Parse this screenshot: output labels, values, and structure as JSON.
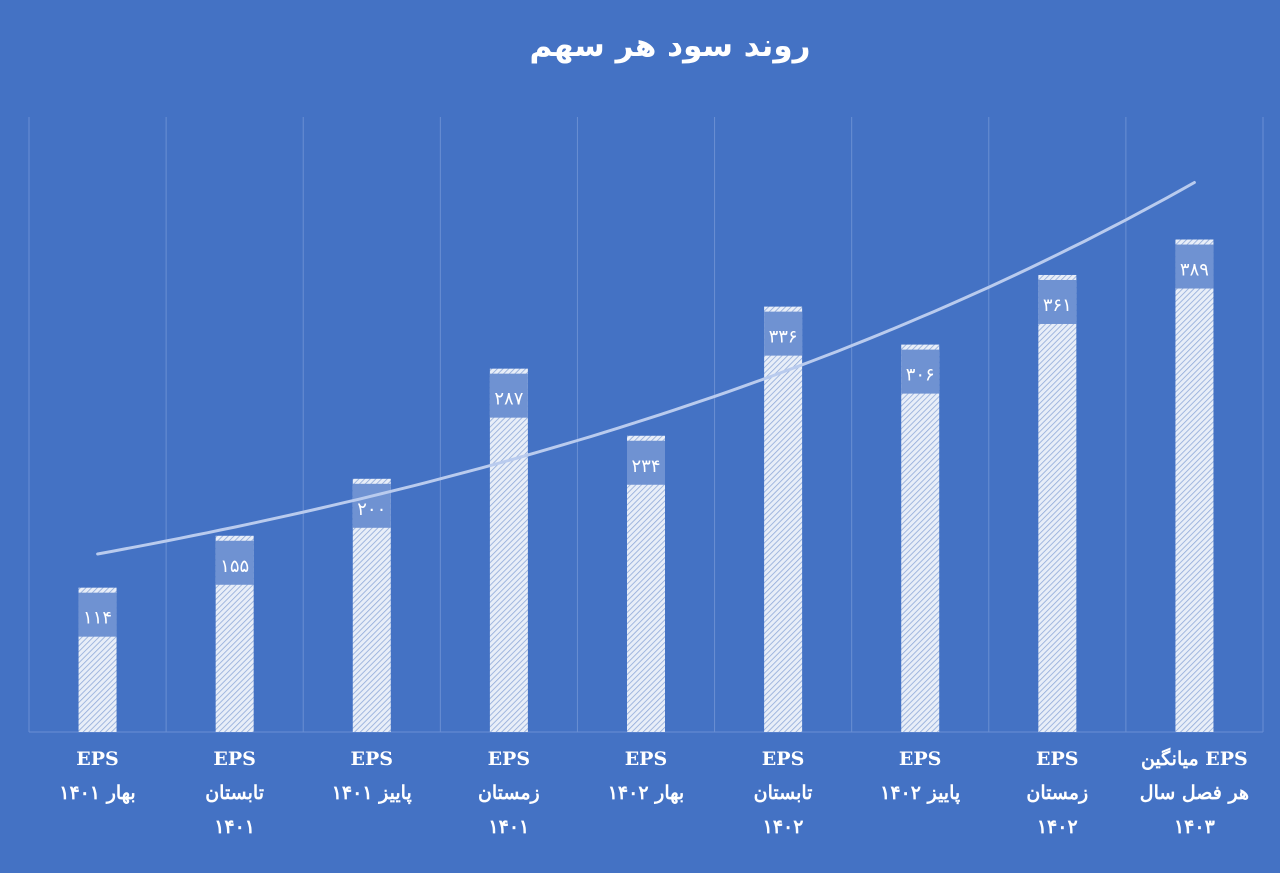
{
  "chart_data": {
    "type": "bar",
    "title": "روند سود هر سهم",
    "xlabel": "",
    "ylabel": "",
    "ylim": [
      0,
      500
    ],
    "grid": "vertical",
    "legend": "none",
    "trendline": "exponential",
    "categories": [
      "EPS\nبهار ۱۴۰۱",
      "EPS\nتابستان\n۱۴۰۱",
      "EPS\nپاییز  ۱۴۰۱",
      "EPS\nزمستان\n۱۴۰۱",
      "EPS\nبهار ۱۴۰۲",
      "EPS\nتابستان\n۱۴۰۲",
      "EPS\nپاییز ۱۴۰۲",
      "EPS\nزمستان\n۱۴۰۲",
      "EPS     میانگین\nهر فصل سال\n۱۴۰۳"
    ],
    "values": [
      114,
      155,
      200,
      287,
      234,
      336,
      306,
      361,
      389
    ],
    "data_labels": [
      "۱۱۴",
      "۱۵۵",
      "۲۰۰",
      "۲۸۷",
      "۲۳۴",
      "۳۳۶",
      "۳۰۶",
      "۳۶۱",
      "۳۸۹"
    ],
    "colors": {
      "background": "#4472c4",
      "bar_fill": "#e8eef8",
      "bar_hatch": "#8fa9d9",
      "label_band": "#6f92d2",
      "trendline": "#b9cbee",
      "grid": "#6a8fd3",
      "text": "#ffffff"
    }
  }
}
